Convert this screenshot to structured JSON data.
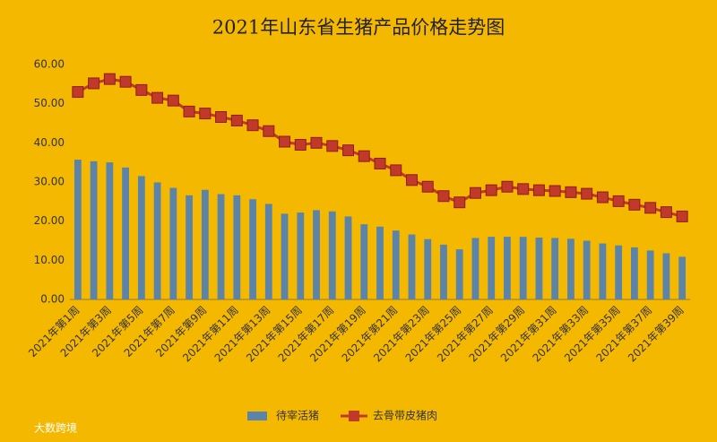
{
  "chart_data": {
    "type": "bar",
    "title": "2021年山东省生猪产品价格走势图",
    "categories": [
      "2021年第1周",
      null,
      "2021年第3周",
      null,
      "2021年第5周",
      null,
      "2021年第7周",
      null,
      "2021年第9周",
      null,
      "2021年第11周",
      null,
      "2021年第13周",
      null,
      "2021年第15周",
      null,
      "2021年第17周",
      null,
      "2021年第19周",
      null,
      "2021年第21周",
      null,
      "2021年第23周",
      null,
      "2021年第25周",
      null,
      "2021年第27周",
      null,
      "2021年第29周",
      null,
      "2021年第31周",
      null,
      "2021年第33周",
      null,
      "2021年第35周",
      null,
      "2021年第37周",
      null,
      "2021年第39周"
    ],
    "series": [
      {
        "name": "待宰活猪",
        "type": "bar",
        "color": "#5b84a8",
        "values": [
          35.7,
          35.3,
          35.0,
          33.7,
          31.5,
          29.9,
          28.5,
          26.6,
          28.0,
          26.9,
          26.6,
          25.6,
          24.4,
          21.9,
          22.2,
          22.8,
          22.5,
          21.2,
          19.2,
          18.6,
          17.6,
          16.6,
          15.4,
          14.0,
          12.8,
          15.7,
          16.0,
          16.0,
          16.0,
          15.8,
          15.7,
          15.5,
          15.0,
          14.3,
          13.8,
          13.3,
          12.5,
          11.8,
          10.9
        ]
      },
      {
        "name": "去骨带皮猪肉",
        "type": "line",
        "color": "#c0392b",
        "values": [
          53.0,
          55.2,
          56.3,
          55.6,
          53.5,
          51.5,
          50.8,
          48.0,
          47.5,
          46.6,
          45.7,
          44.5,
          43.0,
          40.3,
          39.5,
          40.0,
          39.2,
          38.1,
          36.6,
          34.7,
          33.0,
          30.5,
          28.8,
          26.4,
          24.8,
          27.2,
          27.9,
          28.8,
          28.2,
          27.9,
          27.7,
          27.4,
          27.0,
          26.1,
          25.1,
          24.2,
          23.4,
          22.3,
          21.2
        ]
      }
    ],
    "ylim": [
      0,
      60
    ],
    "yticks": [
      {
        "value": 0,
        "label": "0.00"
      },
      {
        "value": 10,
        "label": "10.00"
      },
      {
        "value": 20,
        "label": "20.00"
      },
      {
        "value": 30,
        "label": "30.00"
      },
      {
        "value": 40,
        "label": "40.00"
      },
      {
        "value": 50,
        "label": "50.00"
      },
      {
        "value": 60,
        "label": "60.00"
      }
    ],
    "grid": false,
    "legend": "bottom",
    "watermark": "大数跨境"
  }
}
